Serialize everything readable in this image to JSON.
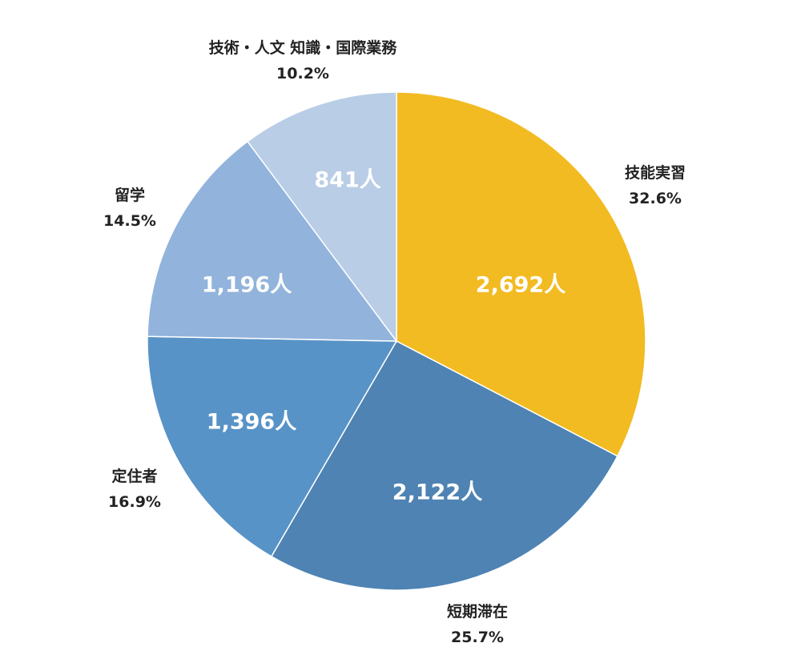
{
  "chart_data": {
    "type": "pie",
    "title": "",
    "unit_suffix": "人",
    "slices": [
      {
        "name": "技能実習",
        "value": 2692,
        "value_label": "2,692人",
        "percent_label": "32.6%",
        "color": "#f2bb22"
      },
      {
        "name": "短期滞在",
        "value": 2122,
        "value_label": "2,122人",
        "percent_label": "25.7%",
        "color": "#4e83b3"
      },
      {
        "name": "定住者",
        "value": 1396,
        "value_label": "1,396人",
        "percent_label": "16.9%",
        "color": "#5893c7"
      },
      {
        "name": "留学",
        "value": 1196,
        "value_label": "1,196人",
        "percent_label": "14.5%",
        "color": "#92b3db"
      },
      {
        "name": "技術・人文 知識・国際業務",
        "value": 841,
        "value_label": "841人",
        "percent_label": "10.2%",
        "color": "#b9cde6"
      }
    ]
  }
}
